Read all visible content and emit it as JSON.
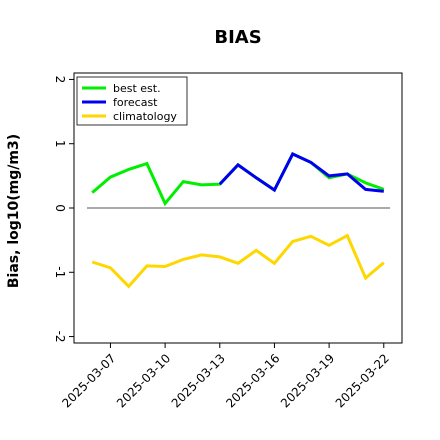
{
  "chart_data": {
    "type": "line",
    "title": "BIAS",
    "xlabel": "",
    "ylabel": "Bias, log10(mg/m3)",
    "ylim": [
      -2.1,
      2.1
    ],
    "yticks": [
      -2,
      -1,
      0,
      1,
      2
    ],
    "xlim": [
      "2025-03-05",
      "2025-03-23"
    ],
    "xticks": [
      "2025-03-07",
      "2025-03-10",
      "2025-03-13",
      "2025-03-16",
      "2025-03-19",
      "2025-03-22"
    ],
    "highlighted_tick": "2025-03-13",
    "highlight_color": "#228B22",
    "zero_line": true,
    "grid": false,
    "legend_position": "top-left",
    "series": [
      {
        "name": "best est.",
        "color": "#00ee00",
        "x": [
          "2025-03-06",
          "2025-03-07",
          "2025-03-08",
          "2025-03-09",
          "2025-03-10",
          "2025-03-11",
          "2025-03-12",
          "2025-03-13",
          "2025-03-14",
          "2025-03-15",
          "2025-03-16",
          "2025-03-17",
          "2025-03-18",
          "2025-03-19",
          "2025-03-20",
          "2025-03-21",
          "2025-03-22"
        ],
        "y": [
          0.24,
          0.48,
          0.6,
          0.69,
          0.07,
          0.41,
          0.36,
          0.37,
          0.67,
          0.47,
          0.28,
          0.84,
          0.71,
          0.47,
          0.53,
          0.39,
          0.29
        ]
      },
      {
        "name": "forecast",
        "color": "#0000ee",
        "x": [
          "2025-03-13",
          "2025-03-14",
          "2025-03-15",
          "2025-03-16",
          "2025-03-17",
          "2025-03-18",
          "2025-03-19",
          "2025-03-20",
          "2025-03-21",
          "2025-03-22"
        ],
        "y": [
          0.37,
          0.67,
          0.47,
          0.28,
          0.84,
          0.71,
          0.5,
          0.53,
          0.29,
          0.26
        ]
      },
      {
        "name": "climatology",
        "color": "#ffd700",
        "x": [
          "2025-03-06",
          "2025-03-07",
          "2025-03-08",
          "2025-03-09",
          "2025-03-10",
          "2025-03-11",
          "2025-03-12",
          "2025-03-13",
          "2025-03-14",
          "2025-03-15",
          "2025-03-16",
          "2025-03-17",
          "2025-03-18",
          "2025-03-19",
          "2025-03-20",
          "2025-03-21",
          "2025-03-22"
        ],
        "y": [
          -0.84,
          -0.93,
          -1.22,
          -0.9,
          -0.91,
          -0.8,
          -0.73,
          -0.76,
          -0.86,
          -0.66,
          -0.86,
          -0.52,
          -0.44,
          -0.58,
          -0.43,
          -1.09,
          -0.85
        ]
      }
    ]
  }
}
